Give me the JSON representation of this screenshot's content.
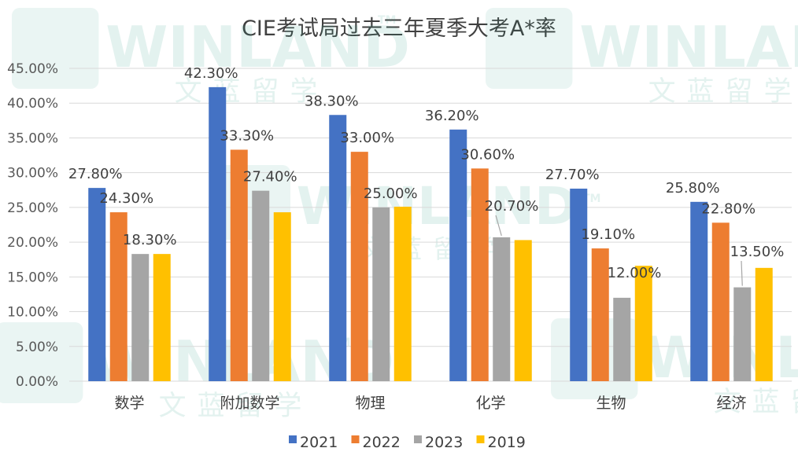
{
  "chart_data": {
    "type": "bar",
    "title": "CIE考试局过去三年夏季大考A*率",
    "categories": [
      "数学",
      "附加数学",
      "物理",
      "化学",
      "生物",
      "经济"
    ],
    "series": [
      {
        "name": "2021",
        "color": "#4472C4",
        "values": [
          27.8,
          42.3,
          38.3,
          36.2,
          27.7,
          25.8
        ]
      },
      {
        "name": "2022",
        "color": "#ED7D31",
        "values": [
          24.3,
          33.3,
          33.0,
          30.6,
          19.1,
          22.8
        ]
      },
      {
        "name": "2023",
        "color": "#A5A5A5",
        "values": [
          18.3,
          27.4,
          25.0,
          20.7,
          12.0,
          13.5
        ]
      },
      {
        "name": "2019",
        "color": "#FFC000",
        "values": [
          18.3,
          24.3,
          25.1,
          20.3,
          16.6,
          16.3
        ]
      }
    ],
    "data_labels": [
      [
        "27.80%",
        "42.30%",
        "38.30%",
        "36.20%",
        "27.70%",
        "25.80%"
      ],
      [
        "24.30%",
        "33.30%",
        "33.00%",
        "30.60%",
        "19.10%",
        "22.80%"
      ],
      [
        "18.30%",
        "27.40%",
        "25.00%",
        "20.70%",
        "12.00%",
        "13.50%"
      ]
    ],
    "yticks": [
      "0.00%",
      "5.00%",
      "10.00%",
      "15.00%",
      "20.00%",
      "25.00%",
      "30.00%",
      "35.00%",
      "40.00%",
      "45.00%"
    ],
    "ylim": [
      0,
      45
    ],
    "grid": true,
    "legend": "bottom"
  },
  "watermark": {
    "brand": "WINLAND",
    "brand_cn": "文蓝留学",
    "tm": "TM"
  }
}
